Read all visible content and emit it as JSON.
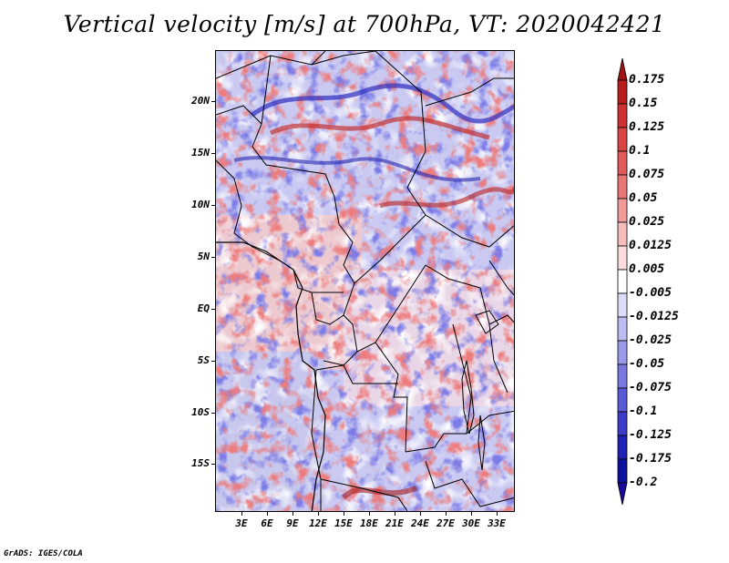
{
  "title": "Vertical velocity [m/s] at 700hPa, VT: 2020042421",
  "footer": "GrADS: IGES/COLA",
  "map": {
    "lat_labels": [
      "20N",
      "15N",
      "10N",
      "5N",
      "EQ",
      "5S",
      "10S",
      "15S"
    ],
    "lon_labels": [
      "3E",
      "6E",
      "9E",
      "12E",
      "15E",
      "18E",
      "21E",
      "24E",
      "27E",
      "30E",
      "33E"
    ]
  },
  "colorbar": {
    "labels": [
      "0.175",
      "0.15",
      "0.125",
      "0.1",
      "0.075",
      "0.05",
      "0.025",
      "0.0125",
      "0.005",
      "-0.005",
      "-0.0125",
      "-0.025",
      "-0.05",
      "-0.075",
      "-0.1",
      "-0.125",
      "-0.175",
      "-0.2"
    ],
    "colors": [
      "#9e1010",
      "#b81d1d",
      "#cc3030",
      "#d94545",
      "#e05a5a",
      "#e87878",
      "#f09a9a",
      "#f6bcbc",
      "#fadcdc",
      "#ffffff",
      "#dcdcf8",
      "#bcbcf2",
      "#9a9aea",
      "#7878e0",
      "#5a5ad6",
      "#3c3cc8",
      "#2020b4",
      "#10109e"
    ],
    "top_color": "#a01414",
    "bottom_color": "#1a0a9a"
  }
}
